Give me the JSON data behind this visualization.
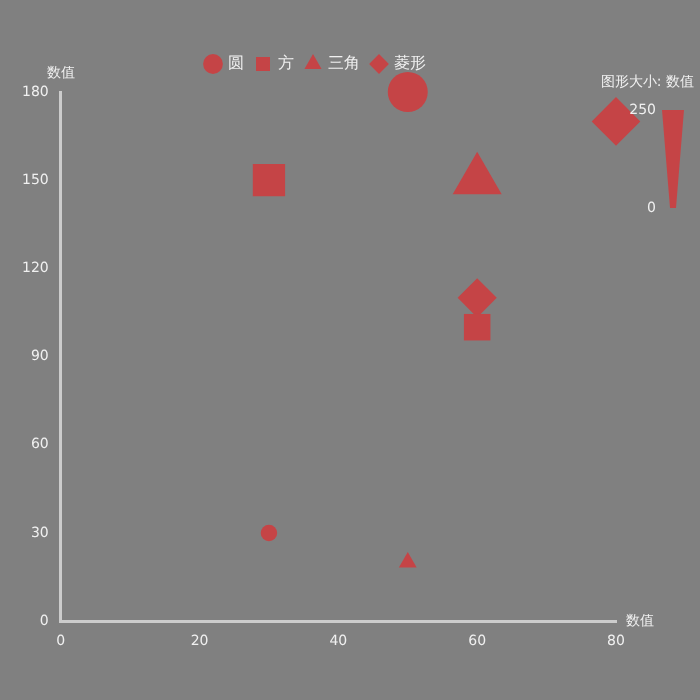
{
  "chart_data": {
    "type": "bubble",
    "xlabel": "数值",
    "ylabel": "数值",
    "legend_title": "图形大小: 数值",
    "xlim": [
      0,
      80
    ],
    "xticks": [
      0,
      20,
      40,
      60,
      80
    ],
    "ylim": [
      0,
      180
    ],
    "yticks": [
      0,
      30,
      60,
      90,
      120,
      150,
      180
    ],
    "grid": false,
    "legend": "top",
    "annotations": [
      "250",
      "0"
    ],
    "series": [
      {
        "name": "圆",
        "color": "#c54446",
        "marker": "circle",
        "x": [
          50,
          30
        ],
        "values": [
          180,
          30
        ],
        "sizes": [
          1,
          0.17
        ]
      },
      {
        "name": "方",
        "color": "#c54446",
        "marker": "square",
        "x": [
          30,
          60
        ],
        "values": [
          150,
          100
        ],
        "sizes": [
          0.83,
          0.56
        ]
      },
      {
        "name": "三角",
        "color": "#c54446",
        "marker": "triangle",
        "x": [
          60,
          50
        ],
        "values": [
          150,
          20
        ],
        "sizes": [
          0.83,
          0.11
        ]
      },
      {
        "name": "菱形",
        "color": "#c54446",
        "marker": "diamond",
        "x": [
          80,
          60
        ],
        "values": [
          170,
          110
        ],
        "sizes": [
          0.94,
          0.61
        ]
      }
    ]
  }
}
